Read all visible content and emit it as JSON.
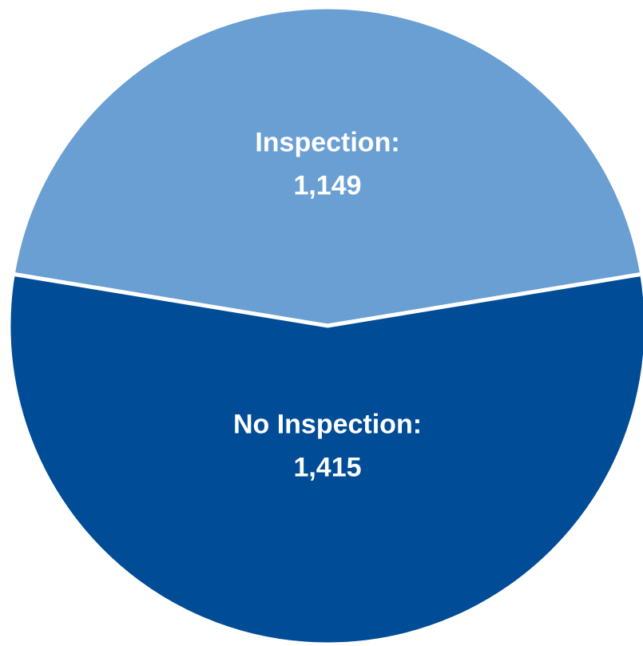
{
  "chart_data": {
    "type": "pie",
    "categories": [
      "Inspection:",
      "No Inspection:"
    ],
    "values": [
      1149,
      1415
    ],
    "value_labels": [
      "1,149",
      "1,415"
    ],
    "colors": [
      "#6a9fd4",
      "#004c97"
    ]
  }
}
